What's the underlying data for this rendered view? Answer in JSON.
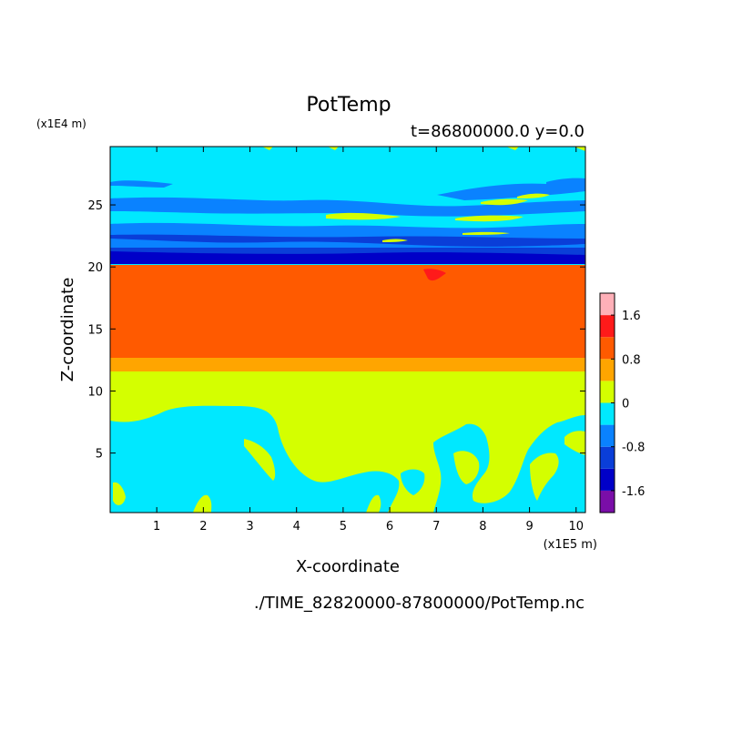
{
  "chart_data": {
    "type": "heatmap",
    "title": "PotTemp",
    "subtitle": "t=86800000.0 y=0.0",
    "xlabel": "X-coordinate",
    "ylabel": "Z-coordinate",
    "x_unit": "(x1E5 m)",
    "y_unit": "(x1E4 m)",
    "footer": "./TIME_82820000-87800000/PotTemp.nc",
    "xlim": [
      0,
      10.2
    ],
    "ylim": [
      0.2,
      29.7
    ],
    "x_ticks": [
      1,
      2,
      3,
      4,
      5,
      6,
      7,
      8,
      9,
      10
    ],
    "x_tick_labels": [
      "1",
      "2",
      "3",
      "4",
      "5",
      "6",
      "7",
      "8",
      "9",
      "10"
    ],
    "y_ticks": [
      5,
      10,
      15,
      20,
      25
    ],
    "y_tick_labels": [
      "5",
      "10",
      "15",
      "20",
      "25"
    ],
    "colorbar": {
      "levels": [
        -2.0,
        -1.6,
        -1.2,
        -0.8,
        -0.4,
        0,
        0.4,
        0.8,
        1.2,
        1.6,
        2.0
      ],
      "colors": [
        "#7a0ea8",
        "#0000c8",
        "#0a3ed8",
        "#0a82ff",
        "#00e8ff",
        "#d4ff00",
        "#ffa500",
        "#ff5a00",
        "#ff1a1a",
        "#ffb0b8"
      ],
      "tick_values": [
        1.6,
        0.8,
        0,
        -0.8,
        -1.6
      ],
      "tick_labels": [
        "1.6",
        "0.8",
        "0",
        "-0.8",
        "-1.6"
      ]
    },
    "regions": [
      {
        "z_range": [
          0.2,
          10.8
        ],
        "value": "mixed -0.4 to 0.4",
        "note": "cyan (-0.4..0) and yellow-green (0..0.4) patches"
      },
      {
        "z_range": [
          10.8,
          11.8
        ],
        "value_range": [
          0,
          0.4
        ],
        "color_class": 5
      },
      {
        "z_range": [
          11.8,
          12.8
        ],
        "value_range": [
          0.4,
          0.8
        ],
        "color_class": 6
      },
      {
        "z_range": [
          12.8,
          20.2
        ],
        "value_range": [
          0.8,
          1.2
        ],
        "color_class": 7
      },
      {
        "z_range": [
          20.2,
          21.3
        ],
        "value_range": [
          -2.0,
          -0.8
        ],
        "note": "dark blue bands"
      },
      {
        "z_range": [
          21.3,
          29.7
        ],
        "value": "mostly -0.4 to 0",
        "note": "cyan with blue and yellow streaks"
      }
    ]
  }
}
